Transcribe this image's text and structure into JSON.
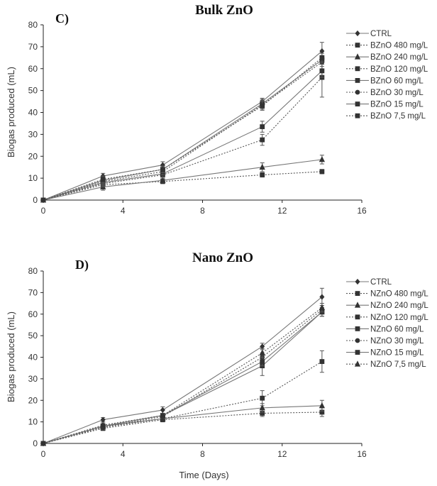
{
  "chart_data": [
    {
      "type": "line",
      "panel_label": "C)",
      "title": "Bulk ZnO",
      "xlabel": "",
      "ylabel": "Biogas produced (mL)",
      "xlim": [
        0,
        16
      ],
      "ylim": [
        0,
        80
      ],
      "xticks": [
        0,
        4,
        8,
        12,
        16
      ],
      "yticks": [
        0,
        10,
        20,
        30,
        40,
        50,
        60,
        70,
        80
      ],
      "grid": false,
      "legend_position": "top-right",
      "x": [
        0,
        3,
        6,
        11,
        14
      ],
      "series": [
        {
          "name": "CTRL",
          "marker": "diamond",
          "dash": "solid",
          "values": [
            0,
            11,
            16,
            45,
            68
          ],
          "errors": [
            0,
            1.2,
            1.5,
            1.5,
            4
          ]
        },
        {
          "name": "BZnO 480 mg/L",
          "marker": "square",
          "dash": "dotted",
          "values": [
            0,
            7,
            8.5,
            11.5,
            13
          ],
          "errors": [
            0,
            1,
            1,
            1,
            1
          ]
        },
        {
          "name": "BZnO 240 mg/L",
          "marker": "triangle",
          "dash": "solid",
          "values": [
            0,
            6,
            9,
            15,
            18.5
          ],
          "errors": [
            0,
            1.5,
            1,
            2,
            2
          ]
        },
        {
          "name": "BZnO 120 mg/L",
          "marker": "square",
          "dash": "dotted",
          "values": [
            0,
            7.5,
            11.5,
            27.5,
            56
          ],
          "errors": [
            0,
            1.5,
            1.5,
            2.5,
            9
          ]
        },
        {
          "name": "BZnO 60 mg/L",
          "marker": "square",
          "dash": "solid",
          "values": [
            0,
            8,
            12,
            33.5,
            59
          ],
          "errors": [
            0,
            1.5,
            1.5,
            2.5,
            3
          ]
        },
        {
          "name": "BZnO 30 mg/L",
          "marker": "circle",
          "dash": "dotted",
          "values": [
            0,
            8.5,
            13,
            43.5,
            63
          ],
          "errors": [
            0,
            1.5,
            1.5,
            2,
            2
          ]
        },
        {
          "name": "BZnO 15 mg/L",
          "marker": "square",
          "dash": "solid",
          "values": [
            0,
            9,
            14,
            44,
            64
          ],
          "errors": [
            0,
            1.5,
            1.5,
            2,
            2
          ]
        },
        {
          "name": "BZnO 7,5 mg/L",
          "marker": "square",
          "dash": "dotted",
          "values": [
            0,
            9.5,
            14,
            43,
            65
          ],
          "errors": [
            0,
            1.5,
            1.5,
            2,
            2
          ]
        }
      ]
    },
    {
      "type": "line",
      "panel_label": "D)",
      "title": "Nano ZnO",
      "xlabel": "Time (Days)",
      "ylabel": "Biogas produced (mL)",
      "xlim": [
        0,
        16
      ],
      "ylim": [
        0,
        80
      ],
      "xticks": [
        0,
        4,
        8,
        12,
        16
      ],
      "yticks": [
        0,
        10,
        20,
        30,
        40,
        50,
        60,
        70,
        80
      ],
      "grid": false,
      "legend_position": "top-right",
      "x": [
        0,
        3,
        6,
        11,
        14
      ],
      "series": [
        {
          "name": "CTRL",
          "marker": "diamond",
          "dash": "solid",
          "values": [
            0,
            11,
            15.5,
            45,
            68
          ],
          "errors": [
            0,
            1,
            1.5,
            1.5,
            4
          ]
        },
        {
          "name": "NZnO 480 mg/L",
          "marker": "square",
          "dash": "dotted",
          "values": [
            0,
            7,
            11,
            14,
            14.5
          ],
          "errors": [
            0,
            1,
            1,
            1.5,
            2
          ]
        },
        {
          "name": "NZnO 240 mg/L",
          "marker": "triangle",
          "dash": "solid",
          "values": [
            0,
            8,
            11.5,
            16.5,
            17.5
          ],
          "errors": [
            0,
            1,
            1,
            2,
            2.5
          ]
        },
        {
          "name": "NZnO 120 mg/L",
          "marker": "square",
          "dash": "dotted",
          "values": [
            0,
            7.5,
            11.5,
            21,
            38
          ],
          "errors": [
            0,
            1,
            1,
            3.5,
            5
          ]
        },
        {
          "name": "NZnO 60 mg/L",
          "marker": "square",
          "dash": "solid",
          "values": [
            0,
            8,
            13,
            36,
            61
          ],
          "errors": [
            0,
            1,
            1,
            4.5,
            2
          ]
        },
        {
          "name": "NZnO 30 mg/L",
          "marker": "circle",
          "dash": "dotted",
          "values": [
            0,
            7.5,
            12.5,
            40,
            62
          ],
          "errors": [
            0,
            1,
            1,
            2,
            2
          ]
        },
        {
          "name": "NZnO 15 mg/L",
          "marker": "square",
          "dash": "solid",
          "values": [
            0,
            8,
            13,
            38,
            61
          ],
          "errors": [
            0,
            1,
            1,
            2,
            2
          ]
        },
        {
          "name": "NZnO 7,5 mg/L",
          "marker": "triangle",
          "dash": "dotted",
          "values": [
            0,
            8.5,
            13,
            42,
            63
          ],
          "errors": [
            0,
            1,
            1,
            2,
            2
          ]
        }
      ]
    }
  ]
}
